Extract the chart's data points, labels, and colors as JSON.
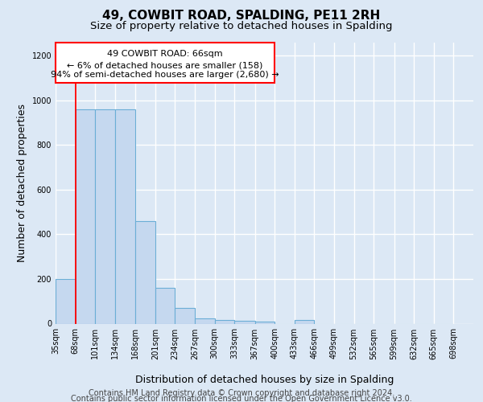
{
  "title1": "49, COWBIT ROAD, SPALDING, PE11 2RH",
  "title2": "Size of property relative to detached houses in Spalding",
  "xlabel": "Distribution of detached houses by size in Spalding",
  "ylabel": "Number of detached properties",
  "footer1": "Contains HM Land Registry data © Crown copyright and database right 2024.",
  "footer2": "Contains public sector information licensed under the Open Government Licence v3.0.",
  "annotation_line1": "49 COWBIT ROAD: 66sqm",
  "annotation_line2": "← 6% of detached houses are smaller (158)",
  "annotation_line3": "94% of semi-detached houses are larger (2,680) →",
  "bar_edges": [
    35,
    68,
    101,
    134,
    168,
    201,
    234,
    267,
    300,
    333,
    367,
    400,
    433,
    466,
    499,
    532,
    565,
    599,
    632,
    665,
    698
  ],
  "bar_heights": [
    200,
    960,
    960,
    960,
    460,
    160,
    70,
    25,
    18,
    14,
    10,
    0,
    15,
    0,
    0,
    0,
    0,
    0,
    0,
    0
  ],
  "bar_color": "#c5d8ef",
  "bar_edge_color": "#6baed6",
  "red_line_x": 68,
  "ylim": [
    0,
    1260
  ],
  "yticks": [
    0,
    200,
    400,
    600,
    800,
    1000,
    1200
  ],
  "bg_color": "#dce8f5",
  "grid_color": "#ffffff",
  "title1_fontsize": 11,
  "title2_fontsize": 9.5,
  "ylabel_fontsize": 9,
  "xlabel_fontsize": 9,
  "footer_fontsize": 7,
  "tick_fontsize": 7,
  "annot_fontsize": 8
}
